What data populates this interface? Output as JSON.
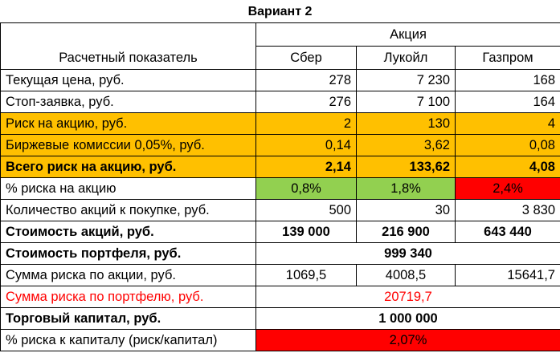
{
  "title": "Вариант 2",
  "header": {
    "group": "Акция",
    "label": "Расчетный показатель",
    "columns": [
      "Сбер",
      "Лукойл",
      "Газпром"
    ]
  },
  "rows": {
    "price": {
      "label": "Текущая цена, руб.",
      "values": [
        "278",
        "7 230",
        "168"
      ]
    },
    "stop": {
      "label": "Стоп-заявка, руб.",
      "values": [
        "276",
        "7 100",
        "164"
      ]
    },
    "risk": {
      "label": "Риск на акцию, руб.",
      "values": [
        "2",
        "130",
        "4"
      ]
    },
    "fees": {
      "label": "Биржевые комиссии 0,05%, руб.",
      "values": [
        "0,14",
        "3,62",
        "0,08"
      ]
    },
    "total_risk": {
      "label": "Всего риск на акцию, руб.",
      "values": [
        "2,14",
        "133,62",
        "4,08"
      ]
    },
    "risk_pct": {
      "label": "% риска на акцию",
      "values": [
        "0,8%",
        "1,8%",
        "2,4%"
      ]
    },
    "qty": {
      "label": "Количество акций к покупке, руб.",
      "values": [
        "500",
        "30",
        "3 830"
      ]
    },
    "cost": {
      "label": "Стоимость акций, руб.",
      "values": [
        "139 000",
        "216 900",
        "643 440"
      ]
    },
    "portfolio": {
      "label": "Стоимость портфеля, руб.",
      "value": "999 340"
    },
    "risk_sum": {
      "label": "Сумма риска по акции, руб.",
      "values": [
        "1069,5",
        "4008,5",
        "15641,7"
      ]
    },
    "portfolio_risk": {
      "label": "Сумма риска по портфелю, руб.",
      "value": "20719,7"
    },
    "capital": {
      "label": "Торговый капитал, руб.",
      "value": "1 000 000"
    },
    "capital_risk": {
      "label": "% риска к капиталу (риск/капитал)",
      "value": "2,07%"
    }
  },
  "colors": {
    "orange": "#FFC000",
    "green": "#92D050",
    "red": "#FF0000"
  }
}
